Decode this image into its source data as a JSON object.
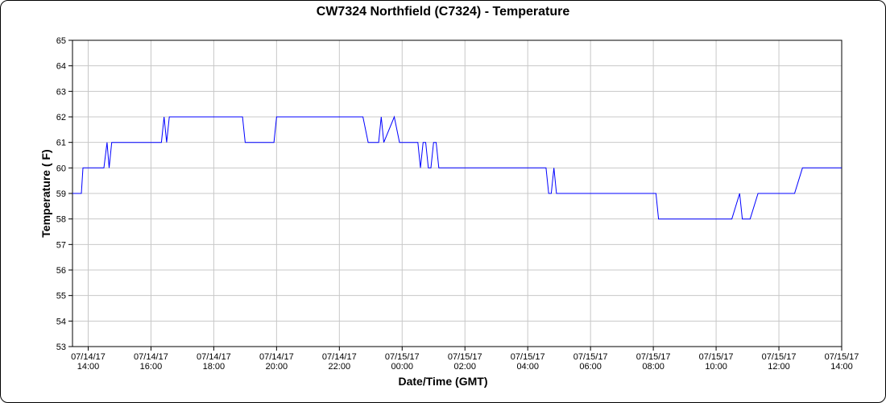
{
  "chart_data": {
    "type": "line",
    "title": "CW7324 Northfield (C7324) - Temperature",
    "xlabel": "Date/Time (GMT)",
    "ylabel": "Temperature ( F)",
    "ylim": [
      53,
      65
    ],
    "xlim": [
      "07/14/17 13:30",
      "07/15/17 14:00"
    ],
    "grid": true,
    "line_color": "#0000ff",
    "x_ticks": [
      {
        "at": "07/14/17 14:00",
        "date": "07/14/17",
        "time": "14:00"
      },
      {
        "at": "07/14/17 16:00",
        "date": "07/14/17",
        "time": "16:00"
      },
      {
        "at": "07/14/17 18:00",
        "date": "07/14/17",
        "time": "18:00"
      },
      {
        "at": "07/14/17 20:00",
        "date": "07/14/17",
        "time": "20:00"
      },
      {
        "at": "07/14/17 22:00",
        "date": "07/14/17",
        "time": "22:00"
      },
      {
        "at": "07/15/17 00:00",
        "date": "07/15/17",
        "time": "00:00"
      },
      {
        "at": "07/15/17 02:00",
        "date": "07/15/17",
        "time": "02:00"
      },
      {
        "at": "07/15/17 04:00",
        "date": "07/15/17",
        "time": "04:00"
      },
      {
        "at": "07/15/17 06:00",
        "date": "07/15/17",
        "time": "06:00"
      },
      {
        "at": "07/15/17 08:00",
        "date": "07/15/17",
        "time": "08:00"
      },
      {
        "at": "07/15/17 10:00",
        "date": "07/15/17",
        "time": "10:00"
      },
      {
        "at": "07/15/17 12:00",
        "date": "07/15/17",
        "time": "12:00"
      },
      {
        "at": "07/15/17 14:00",
        "date": "07/15/17",
        "time": "14:00"
      }
    ],
    "y_ticks": [
      "53",
      "54",
      "55",
      "56",
      "57",
      "58",
      "59",
      "60",
      "61",
      "62",
      "63",
      "64",
      "65"
    ],
    "series": [
      {
        "x": [
          "07/14/17 13:30",
          "07/14/17 13:47",
          "07/14/17 13:50",
          "07/14/17 14:30",
          "07/14/17 14:36",
          "07/14/17 14:40",
          "07/14/17 14:45",
          "07/14/17 16:20",
          "07/14/17 16:25",
          "07/14/17 16:30",
          "07/14/17 16:35",
          "07/14/17 18:55",
          "07/14/17 19:00",
          "07/14/17 19:55",
          "07/14/17 20:00",
          "07/14/17 22:45",
          "07/14/17 22:55",
          "07/14/17 23:15",
          "07/14/17 23:20",
          "07/14/17 23:25",
          "07/14/17 23:45",
          "07/14/17 23:55",
          "07/15/17 00:30",
          "07/15/17 00:35",
          "07/15/17 00:40",
          "07/15/17 00:45",
          "07/15/17 00:50",
          "07/15/17 00:55",
          "07/15/17 01:00",
          "07/15/17 01:05",
          "07/15/17 01:10",
          "07/15/17 04:35",
          "07/15/17 04:40",
          "07/15/17 04:45",
          "07/15/17 04:50",
          "07/15/17 04:55",
          "07/15/17 08:05",
          "07/15/17 08:10",
          "07/15/17 10:30",
          "07/15/17 10:45",
          "07/15/17 10:50",
          "07/15/17 11:05",
          "07/15/17 11:20",
          "07/15/17 12:30",
          "07/15/17 12:45",
          "07/15/17 14:00"
        ],
        "y": [
          59,
          59,
          60,
          60,
          61,
          60,
          61,
          61,
          62,
          61,
          62,
          62,
          61,
          61,
          62,
          62,
          61,
          61,
          62,
          61,
          62,
          61,
          61,
          60,
          61,
          61,
          60,
          60,
          61,
          61,
          60,
          60,
          59,
          59,
          60,
          59,
          59,
          58,
          58,
          59,
          58,
          58,
          59,
          59,
          60,
          60
        ]
      }
    ]
  }
}
